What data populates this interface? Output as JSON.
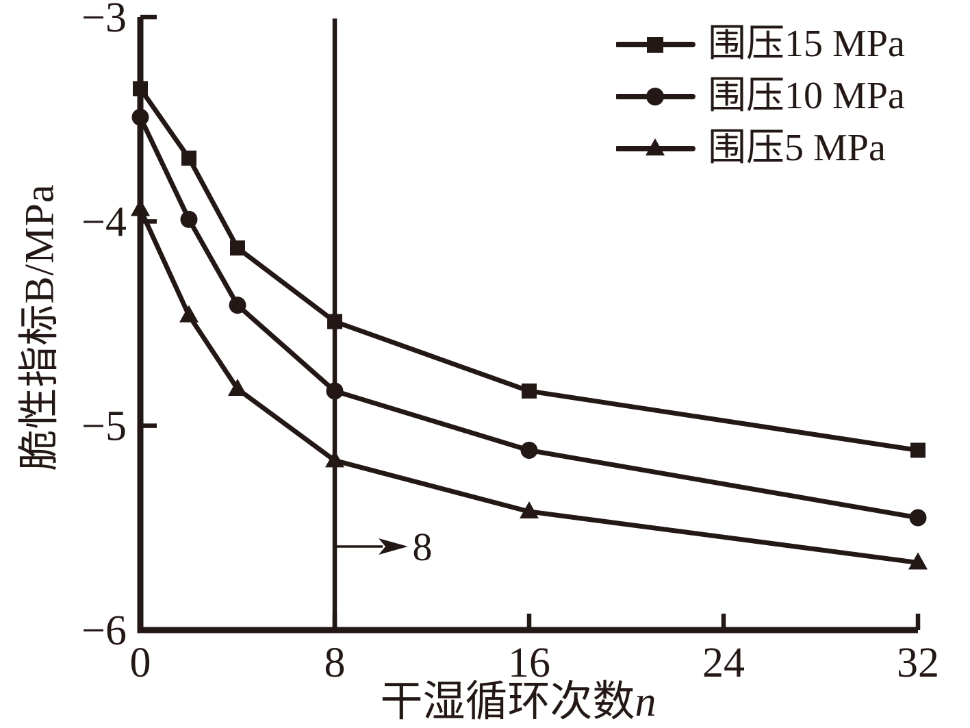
{
  "colors": {
    "ink": "#231815",
    "background": "#ffffff"
  },
  "chart_data": {
    "type": "line",
    "title": "",
    "xlabel": "干湿循环次数n",
    "xlabel_parts": {
      "text": "干湿循环次数",
      "var": "n"
    },
    "ylabel": "脆性指标B/MPa",
    "xlim": [
      0,
      32
    ],
    "ylim": [
      -6,
      -3
    ],
    "x_ticks": [
      0,
      8,
      16,
      24,
      32
    ],
    "x_tick_labels": [
      "0",
      "8",
      "16",
      "24",
      "32"
    ],
    "y_ticks": [
      -3,
      -4,
      -5,
      -6
    ],
    "y_tick_labels": [
      "−3",
      "−4",
      "−5",
      "−6"
    ],
    "grid": false,
    "legend_position": "top-right-inside",
    "x": [
      0,
      2,
      4,
      8,
      16,
      32
    ],
    "series": [
      {
        "name": "围压15 MPa",
        "marker": "square",
        "values": [
          -3.35,
          -3.69,
          -4.13,
          -4.49,
          -4.83,
          -5.12
        ]
      },
      {
        "name": "围压10 MPa",
        "marker": "circle",
        "values": [
          -3.49,
          -3.99,
          -4.41,
          -4.83,
          -5.12,
          -5.45
        ]
      },
      {
        "name": "围压5 MPa",
        "marker": "triangle",
        "values": [
          -3.94,
          -4.46,
          -4.82,
          -5.17,
          -5.42,
          -5.67
        ]
      }
    ],
    "annotation": {
      "line_x": 8,
      "label": "8"
    }
  }
}
